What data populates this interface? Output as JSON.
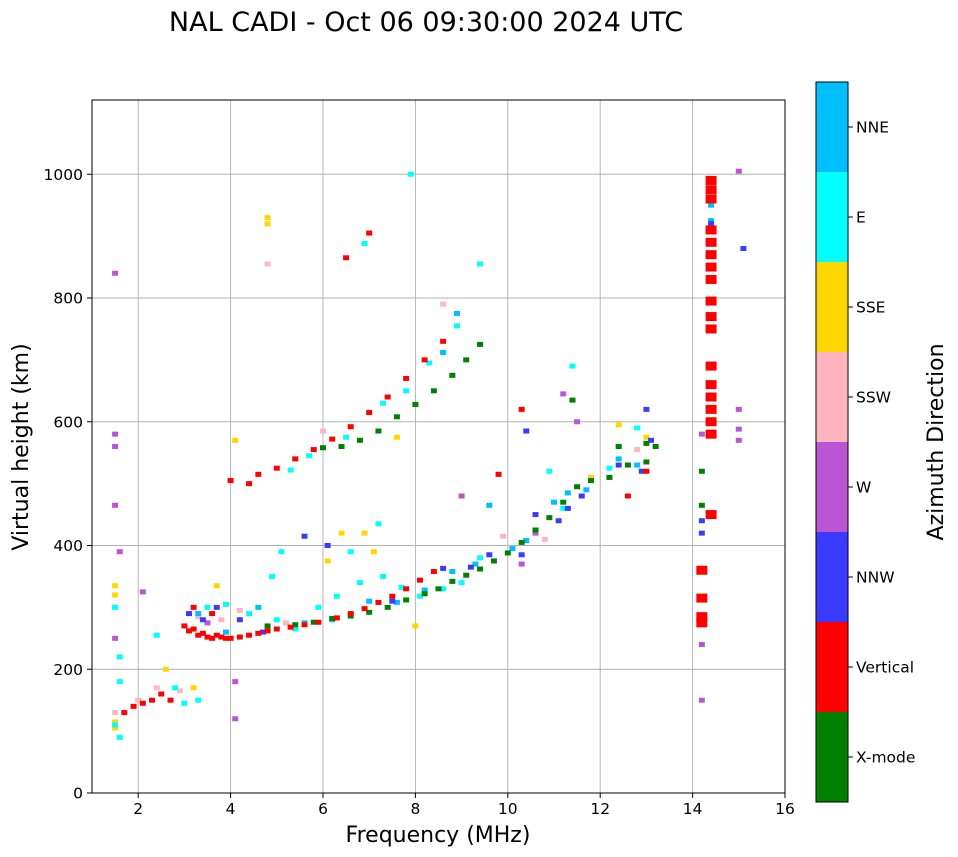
{
  "chart_data": {
    "type": "scatter",
    "title": "NAL CADI - Oct 06 09:30:00 2024 UTC",
    "xlabel": "Frequency (MHz)",
    "ylabel": "Virtual height (km)",
    "xlim": [
      1.0,
      16.0
    ],
    "ylim": [
      0,
      1120
    ],
    "xticks": [
      2,
      4,
      6,
      8,
      10,
      12,
      14,
      16
    ],
    "yticks": [
      0,
      200,
      400,
      600,
      800,
      1000
    ],
    "grid": true,
    "colorbar": {
      "title": "Azimuth Direction",
      "categories": [
        {
          "name": "NNE",
          "color": "#00bfff"
        },
        {
          "name": "E",
          "color": "#00ffff"
        },
        {
          "name": "SSE",
          "color": "#ffd700"
        },
        {
          "name": "SSW",
          "color": "#ffb6c1"
        },
        {
          "name": "W",
          "color": "#ba55d3"
        },
        {
          "name": "NNW",
          "color": "#3b3bff"
        },
        {
          "name": "Vertical",
          "color": "#ff0000"
        },
        {
          "name": "X-mode",
          "color": "#008000"
        }
      ]
    },
    "series": [
      {
        "name": "Vertical",
        "points": [
          [
            1.7,
            130
          ],
          [
            1.9,
            140
          ],
          [
            2.1,
            145
          ],
          [
            2.3,
            150
          ],
          [
            2.5,
            160
          ],
          [
            2.7,
            150
          ],
          [
            3.0,
            270
          ],
          [
            3.1,
            262
          ],
          [
            3.2,
            265
          ],
          [
            3.3,
            255
          ],
          [
            3.4,
            258
          ],
          [
            3.5,
            252
          ],
          [
            3.6,
            250
          ],
          [
            3.7,
            255
          ],
          [
            3.8,
            252
          ],
          [
            3.9,
            250
          ],
          [
            4.0,
            250
          ],
          [
            4.2,
            252
          ],
          [
            4.4,
            255
          ],
          [
            4.6,
            258
          ],
          [
            4.8,
            262
          ],
          [
            5.0,
            265
          ],
          [
            5.3,
            268
          ],
          [
            5.6,
            272
          ],
          [
            5.9,
            276
          ],
          [
            6.3,
            283
          ],
          [
            6.6,
            290
          ],
          [
            6.9,
            298
          ],
          [
            7.2,
            308
          ],
          [
            7.5,
            318
          ],
          [
            7.8,
            330
          ],
          [
            8.1,
            344
          ],
          [
            8.4,
            358
          ],
          [
            3.2,
            300
          ],
          [
            3.6,
            290
          ],
          [
            4.0,
            505
          ],
          [
            4.4,
            500
          ],
          [
            4.6,
            515
          ],
          [
            5.0,
            525
          ],
          [
            5.4,
            540
          ],
          [
            5.8,
            555
          ],
          [
            6.2,
            572
          ],
          [
            6.6,
            592
          ],
          [
            7.0,
            615
          ],
          [
            7.4,
            640
          ],
          [
            7.8,
            670
          ],
          [
            8.2,
            700
          ],
          [
            8.6,
            730
          ],
          [
            9.8,
            515
          ],
          [
            10.3,
            620
          ],
          [
            12.6,
            480
          ],
          [
            13.0,
            520
          ],
          [
            14.4,
            990
          ],
          [
            14.4,
            975
          ],
          [
            14.4,
            960
          ],
          [
            14.4,
            910
          ],
          [
            14.4,
            890
          ],
          [
            14.4,
            870
          ],
          [
            14.4,
            850
          ],
          [
            14.4,
            830
          ],
          [
            14.4,
            795
          ],
          [
            14.4,
            770
          ],
          [
            14.4,
            750
          ],
          [
            14.4,
            690
          ],
          [
            14.4,
            660
          ],
          [
            14.4,
            640
          ],
          [
            14.4,
            620
          ],
          [
            14.4,
            600
          ],
          [
            14.4,
            580
          ],
          [
            14.4,
            450
          ],
          [
            14.2,
            360
          ],
          [
            14.2,
            315
          ],
          [
            14.2,
            285
          ],
          [
            14.2,
            275
          ],
          [
            6.5,
            865
          ],
          [
            7.0,
            905
          ]
        ]
      },
      {
        "name": "X-mode",
        "points": [
          [
            4.8,
            270
          ],
          [
            5.4,
            272
          ],
          [
            5.8,
            276
          ],
          [
            6.2,
            282
          ],
          [
            6.6,
            286
          ],
          [
            7.0,
            292
          ],
          [
            7.4,
            300
          ],
          [
            7.8,
            312
          ],
          [
            8.2,
            322
          ],
          [
            8.5,
            330
          ],
          [
            8.8,
            342
          ],
          [
            9.1,
            352
          ],
          [
            9.4,
            362
          ],
          [
            9.7,
            375
          ],
          [
            10.0,
            388
          ],
          [
            10.3,
            405
          ],
          [
            10.6,
            425
          ],
          [
            10.9,
            445
          ],
          [
            11.2,
            470
          ],
          [
            11.5,
            495
          ],
          [
            11.8,
            505
          ],
          [
            12.2,
            510
          ],
          [
            12.6,
            530
          ],
          [
            13.0,
            535
          ],
          [
            13.2,
            560
          ],
          [
            6.0,
            558
          ],
          [
            6.4,
            560
          ],
          [
            6.8,
            570
          ],
          [
            7.2,
            585
          ],
          [
            7.6,
            608
          ],
          [
            8.0,
            628
          ],
          [
            8.4,
            650
          ],
          [
            8.8,
            675
          ],
          [
            9.1,
            700
          ],
          [
            9.4,
            725
          ],
          [
            11.4,
            635
          ],
          [
            13.0,
            565
          ],
          [
            12.4,
            560
          ],
          [
            14.2,
            520
          ],
          [
            14.2,
            465
          ]
        ]
      },
      {
        "name": "NNW",
        "points": [
          [
            3.1,
            290
          ],
          [
            3.4,
            280
          ],
          [
            3.7,
            300
          ],
          [
            4.2,
            280
          ],
          [
            4.7,
            260
          ],
          [
            5.6,
            415
          ],
          [
            6.1,
            400
          ],
          [
            7.5,
            310
          ],
          [
            8.6,
            363
          ],
          [
            9.2,
            365
          ],
          [
            9.6,
            385
          ],
          [
            10.3,
            385
          ],
          [
            10.6,
            450
          ],
          [
            11.1,
            440
          ],
          [
            11.3,
            460
          ],
          [
            11.6,
            480
          ],
          [
            12.4,
            530
          ],
          [
            12.9,
            520
          ],
          [
            13.1,
            570
          ],
          [
            14.4,
            920
          ],
          [
            15.1,
            880
          ],
          [
            14.2,
            440
          ],
          [
            14.2,
            420
          ],
          [
            13.0,
            620
          ],
          [
            10.4,
            585
          ]
        ]
      },
      {
        "name": "W",
        "points": [
          [
            1.5,
            840
          ],
          [
            1.5,
            580
          ],
          [
            1.5,
            560
          ],
          [
            1.5,
            465
          ],
          [
            1.6,
            390
          ],
          [
            1.5,
            250
          ],
          [
            2.1,
            325
          ],
          [
            3.5,
            275
          ],
          [
            4.1,
            180
          ],
          [
            4.1,
            120
          ],
          [
            15.0,
            1005
          ],
          [
            15.0,
            620
          ],
          [
            15.0,
            588
          ],
          [
            15.0,
            570
          ],
          [
            14.2,
            580
          ],
          [
            14.2,
            240
          ],
          [
            14.2,
            150
          ],
          [
            10.3,
            370
          ],
          [
            10.6,
            420
          ],
          [
            11.5,
            600
          ],
          [
            11.2,
            645
          ],
          [
            9.0,
            480
          ]
        ]
      },
      {
        "name": "SSW",
        "points": [
          [
            1.5,
            130
          ],
          [
            2.0,
            150
          ],
          [
            2.4,
            170
          ],
          [
            2.9,
            165
          ],
          [
            3.3,
            285
          ],
          [
            3.8,
            280
          ],
          [
            4.2,
            295
          ],
          [
            5.2,
            275
          ],
          [
            6.0,
            585
          ],
          [
            8.6,
            790
          ],
          [
            9.9,
            415
          ],
          [
            10.8,
            410
          ],
          [
            11.6,
            480
          ],
          [
            12.8,
            555
          ],
          [
            4.8,
            855
          ]
        ]
      },
      {
        "name": "SSE",
        "points": [
          [
            1.5,
            105
          ],
          [
            1.5,
            115
          ],
          [
            1.5,
            335
          ],
          [
            1.5,
            320
          ],
          [
            2.6,
            200
          ],
          [
            3.2,
            170
          ],
          [
            3.7,
            335
          ],
          [
            4.1,
            570
          ],
          [
            4.8,
            930
          ],
          [
            4.8,
            920
          ],
          [
            6.1,
            375
          ],
          [
            6.4,
            420
          ],
          [
            7.1,
            390
          ],
          [
            8.0,
            270
          ],
          [
            11.8,
            510
          ],
          [
            12.4,
            595
          ],
          [
            13.0,
            575
          ],
          [
            6.9,
            420
          ],
          [
            7.6,
            575
          ]
        ]
      },
      {
        "name": "E",
        "points": [
          [
            1.5,
            110
          ],
          [
            1.6,
            90
          ],
          [
            1.6,
            220
          ],
          [
            1.6,
            180
          ],
          [
            1.5,
            300
          ],
          [
            2.4,
            255
          ],
          [
            2.8,
            170
          ],
          [
            3.0,
            145
          ],
          [
            3.3,
            150
          ],
          [
            3.5,
            300
          ],
          [
            3.9,
            305
          ],
          [
            4.4,
            290
          ],
          [
            4.9,
            350
          ],
          [
            5.0,
            280
          ],
          [
            5.4,
            265
          ],
          [
            5.9,
            300
          ],
          [
            6.3,
            318
          ],
          [
            6.8,
            340
          ],
          [
            7.3,
            350
          ],
          [
            7.7,
            332
          ],
          [
            8.1,
            318
          ],
          [
            8.6,
            330
          ],
          [
            9.0,
            340
          ],
          [
            9.4,
            380
          ],
          [
            5.3,
            522
          ],
          [
            5.7,
            545
          ],
          [
            6.5,
            575
          ],
          [
            7.3,
            630
          ],
          [
            7.8,
            650
          ],
          [
            8.3,
            695
          ],
          [
            8.9,
            755
          ],
          [
            9.4,
            855
          ],
          [
            11.2,
            460
          ],
          [
            11.4,
            690
          ],
          [
            12.2,
            525
          ],
          [
            12.8,
            590
          ],
          [
            7.9,
            1000
          ],
          [
            6.6,
            390
          ],
          [
            5.1,
            390
          ],
          [
            7.2,
            435
          ],
          [
            6.9,
            888
          ],
          [
            10.9,
            520
          ]
        ]
      },
      {
        "name": "NNE",
        "points": [
          [
            3.3,
            290
          ],
          [
            3.9,
            260
          ],
          [
            4.6,
            300
          ],
          [
            5.6,
            275
          ],
          [
            6.2,
            280
          ],
          [
            7.0,
            310
          ],
          [
            7.6,
            308
          ],
          [
            8.2,
            328
          ],
          [
            8.8,
            358
          ],
          [
            9.3,
            370
          ],
          [
            9.6,
            465
          ],
          [
            10.1,
            395
          ],
          [
            11.0,
            470
          ],
          [
            11.3,
            485
          ],
          [
            11.7,
            490
          ],
          [
            12.4,
            540
          ],
          [
            12.8,
            530
          ],
          [
            8.6,
            712
          ],
          [
            8.9,
            775
          ],
          [
            10.4,
            408
          ],
          [
            14.4,
            950
          ],
          [
            14.4,
            925
          ]
        ]
      }
    ]
  }
}
